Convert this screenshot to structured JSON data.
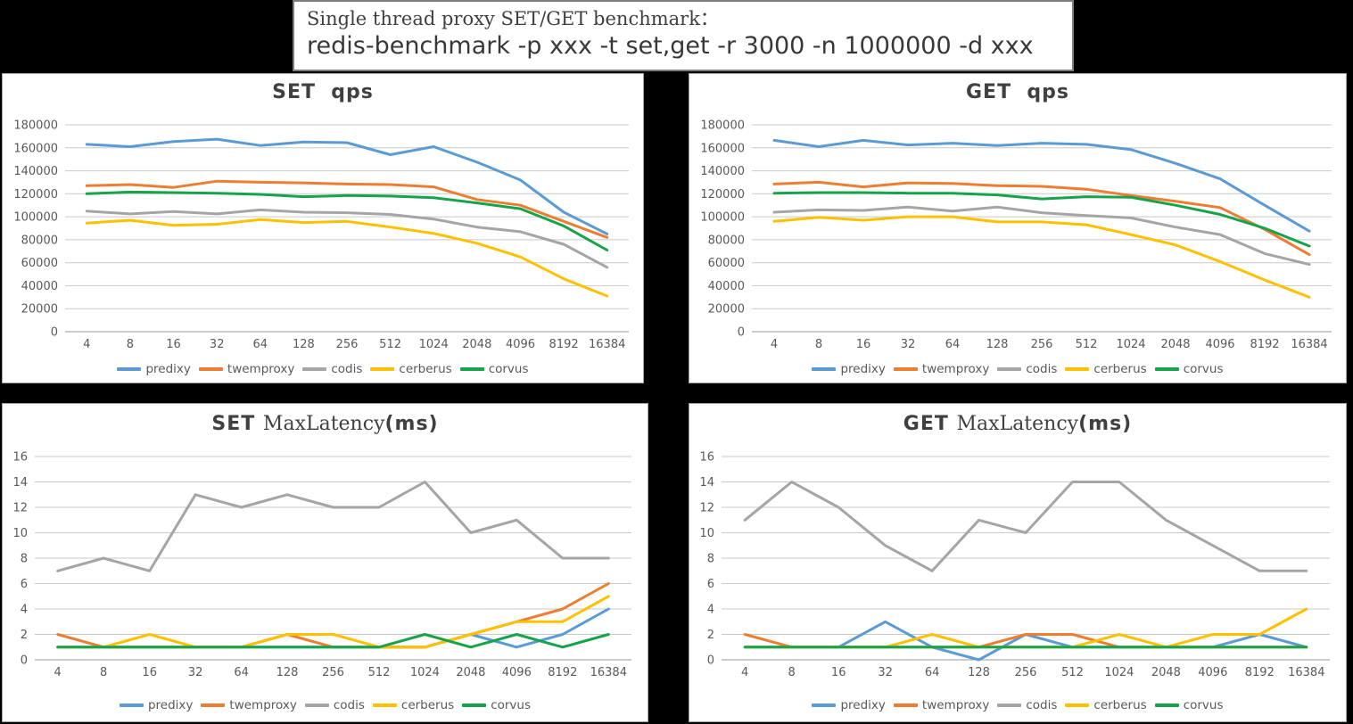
{
  "header": {
    "line1": "Single thread proxy SET/GET benchmark：",
    "line2": "redis-benchmark -p xxx -t set,get -r 3000 -n 1000000 -d xxx"
  },
  "palette": {
    "predixy": "#5B9BD5",
    "twemproxy": "#ED7D31",
    "codis": "#A5A5A5",
    "cerberus": "#FFC000",
    "corvus": "#16A34A",
    "gridline": "#C9C9C9",
    "axis_line": "#999999",
    "tick_text": "#595959",
    "title_text": "#404040"
  },
  "legend_labels": [
    "predixy",
    "twemproxy",
    "codis",
    "cerberus",
    "corvus"
  ],
  "chart_data": [
    {
      "type": "line",
      "id": "set-qps",
      "title": "SET  qps",
      "title_parts": [
        {
          "text": "SET  qps",
          "style": "bold"
        }
      ],
      "xlabel": "",
      "ylabel": "",
      "ylim": [
        0,
        180000
      ],
      "ystep": 20000,
      "grid": true,
      "legend_position": "bottom",
      "categories": [
        4,
        8,
        16,
        32,
        64,
        128,
        256,
        512,
        1024,
        2048,
        4096,
        8192,
        16384
      ],
      "series": [
        {
          "name": "predixy",
          "color": "#5B9BD5",
          "values": [
            163000,
            161000,
            165500,
            167500,
            162000,
            165000,
            164500,
            154000,
            161000,
            147500,
            132000,
            104000,
            85000
          ]
        },
        {
          "name": "twemproxy",
          "color": "#ED7D31",
          "values": [
            127000,
            128000,
            125500,
            131000,
            130000,
            129500,
            128500,
            128000,
            126000,
            115000,
            110000,
            96000,
            82000
          ]
        },
        {
          "name": "codis",
          "color": "#A5A5A5",
          "values": [
            105000,
            102500,
            104500,
            102500,
            106000,
            104000,
            103500,
            102000,
            98000,
            91000,
            87000,
            76000,
            56000
          ]
        },
        {
          "name": "cerberus",
          "color": "#FFC000",
          "values": [
            94500,
            97000,
            92500,
            93500,
            97500,
            95000,
            96000,
            91000,
            85500,
            77000,
            65000,
            46000,
            31000
          ]
        },
        {
          "name": "corvus",
          "color": "#16A34A",
          "values": [
            120000,
            121500,
            121000,
            120500,
            119500,
            117500,
            118500,
            118000,
            116500,
            112000,
            107000,
            92000,
            71000
          ]
        }
      ]
    },
    {
      "type": "line",
      "id": "get-qps",
      "title": "GET  qps",
      "title_parts": [
        {
          "text": "GET  qps",
          "style": "bold"
        }
      ],
      "xlabel": "",
      "ylabel": "",
      "ylim": [
        0,
        180000
      ],
      "ystep": 20000,
      "grid": true,
      "legend_position": "bottom",
      "categories": [
        4,
        8,
        16,
        32,
        64,
        128,
        256,
        512,
        1024,
        2048,
        4096,
        8192,
        16384
      ],
      "series": [
        {
          "name": "predixy",
          "color": "#5B9BD5",
          "values": [
            166500,
            161000,
            166500,
            162500,
            164000,
            162000,
            164000,
            163000,
            158500,
            146500,
            133000,
            110000,
            87500
          ]
        },
        {
          "name": "twemproxy",
          "color": "#ED7D31",
          "values": [
            128500,
            130000,
            126000,
            129500,
            129000,
            127000,
            126500,
            124000,
            118500,
            113500,
            108000,
            89000,
            67000
          ]
        },
        {
          "name": "codis",
          "color": "#A5A5A5",
          "values": [
            104000,
            106000,
            105500,
            108500,
            105000,
            108500,
            103500,
            101000,
            99000,
            91000,
            84500,
            68000,
            58500
          ]
        },
        {
          "name": "cerberus",
          "color": "#FFC000",
          "values": [
            96000,
            99500,
            97000,
            100000,
            100000,
            95500,
            95500,
            93000,
            84500,
            75500,
            61000,
            45000,
            30000
          ]
        },
        {
          "name": "corvus",
          "color": "#16A34A",
          "values": [
            120500,
            121000,
            121000,
            120500,
            120500,
            119000,
            115500,
            117500,
            117000,
            110000,
            102000,
            90000,
            74500
          ]
        }
      ]
    },
    {
      "type": "line",
      "id": "set-maxlatency",
      "title": "SET MaxLatency(ms)",
      "title_parts": [
        {
          "text": "SET ",
          "style": "bold"
        },
        {
          "text": "MaxLatency",
          "style": "serif"
        },
        {
          "text": "(ms)",
          "style": "bold"
        }
      ],
      "xlabel": "",
      "ylabel": "",
      "ylim": [
        0,
        16
      ],
      "ystep": 2,
      "grid": true,
      "legend_position": "bottom",
      "categories": [
        4,
        8,
        16,
        32,
        64,
        128,
        256,
        512,
        1024,
        2048,
        4096,
        8192,
        16384
      ],
      "series": [
        {
          "name": "predixy",
          "color": "#5B9BD5",
          "values": [
            1,
            1,
            1,
            1,
            1,
            1,
            1,
            1,
            1,
            2,
            1,
            2,
            4
          ]
        },
        {
          "name": "twemproxy",
          "color": "#ED7D31",
          "values": [
            2,
            1,
            1,
            1,
            1,
            2,
            1,
            1,
            1,
            2,
            3,
            4,
            6
          ]
        },
        {
          "name": "codis",
          "color": "#A5A5A5",
          "values": [
            7,
            8,
            7,
            13,
            12,
            13,
            12,
            12,
            14,
            10,
            11,
            8,
            8
          ]
        },
        {
          "name": "cerberus",
          "color": "#FFC000",
          "values": [
            1,
            1,
            2,
            1,
            1,
            2,
            2,
            1,
            1,
            2,
            3,
            3,
            5
          ]
        },
        {
          "name": "corvus",
          "color": "#16A34A",
          "values": [
            1,
            1,
            1,
            1,
            1,
            1,
            1,
            1,
            2,
            1,
            2,
            1,
            2
          ]
        }
      ]
    },
    {
      "type": "line",
      "id": "get-maxlatency",
      "title": "GET MaxLatency(ms)",
      "title_parts": [
        {
          "text": "GET ",
          "style": "bold"
        },
        {
          "text": "MaxLatency",
          "style": "serif"
        },
        {
          "text": "(ms)",
          "style": "bold"
        }
      ],
      "xlabel": "",
      "ylabel": "",
      "ylim": [
        0,
        16
      ],
      "ystep": 2,
      "grid": true,
      "legend_position": "bottom",
      "categories": [
        4,
        8,
        16,
        32,
        64,
        128,
        256,
        512,
        1024,
        2048,
        4096,
        8192,
        16384
      ],
      "series": [
        {
          "name": "predixy",
          "color": "#5B9BD5",
          "values": [
            1,
            1,
            1,
            3,
            1,
            0,
            2,
            1,
            1,
            1,
            1,
            2,
            1
          ]
        },
        {
          "name": "twemproxy",
          "color": "#ED7D31",
          "values": [
            2,
            1,
            1,
            1,
            1,
            1,
            2,
            2,
            1,
            1,
            1,
            1,
            1
          ]
        },
        {
          "name": "codis",
          "color": "#A5A5A5",
          "values": [
            11,
            14,
            12,
            9,
            7,
            11,
            10,
            14,
            14,
            11,
            9,
            7,
            7
          ]
        },
        {
          "name": "cerberus",
          "color": "#FFC000",
          "values": [
            1,
            1,
            1,
            1,
            2,
            1,
            1,
            1,
            2,
            1,
            2,
            2,
            4
          ]
        },
        {
          "name": "corvus",
          "color": "#16A34A",
          "values": [
            1,
            1,
            1,
            1,
            1,
            1,
            1,
            1,
            1,
            1,
            1,
            1,
            1
          ]
        }
      ]
    }
  ]
}
